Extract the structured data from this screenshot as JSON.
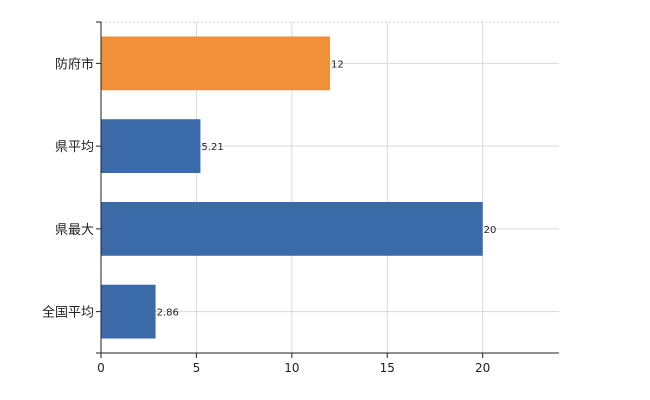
{
  "chart_data": {
    "type": "bar",
    "orientation": "horizontal",
    "categories": [
      "防府市",
      "県平均",
      "県最大",
      "全国平均"
    ],
    "values": [
      12,
      5.21,
      20,
      2.86
    ],
    "value_labels": [
      "12",
      "5.21",
      "20",
      "2.86"
    ],
    "bar_colors": [
      "#f0913a",
      "#3a6aa8",
      "#3a6aa8",
      "#3a6aa8"
    ],
    "xlim": [
      0,
      24
    ],
    "xticks": [
      0,
      5,
      10,
      15,
      20
    ],
    "grid": true,
    "title": "",
    "xlabel": "",
    "ylabel": ""
  }
}
